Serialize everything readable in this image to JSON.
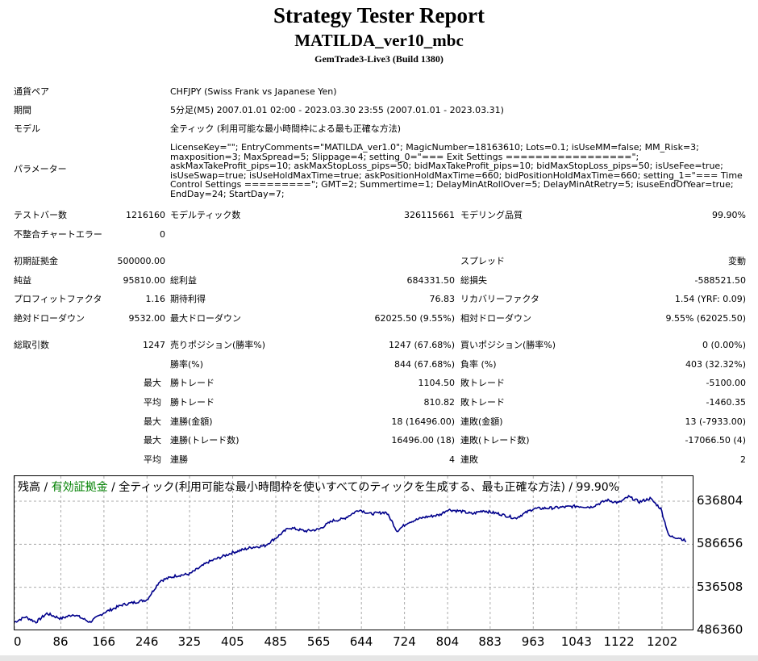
{
  "header": {
    "title": "Strategy Tester Report",
    "ea_name": "MATILDA_ver10_mbc",
    "server": "GemTrade3-Live3 (Build 1380)"
  },
  "info": {
    "symbol_label": "通貨ペア",
    "symbol": "CHFJPY (Swiss Frank vs Japanese Yen)",
    "period_label": "期間",
    "period": "5分足(M5) 2007.01.01 02:00 - 2023.03.30 23:55 (2007.01.01 - 2023.03.31)",
    "model_label": "モデル",
    "model": "全ティック (利用可能な最小時間枠による最も正確な方法)",
    "params_label": "パラメーター",
    "params": "LicenseKey=\"\"; EntryComments=\"MATILDA_ver1.0\"; MagicNumber=18163610; Lots=0.1; isUseMM=false; MM_Risk=3; maxposition=3; MaxSpread=5; Slippage=4; setting_0=\"=== Exit Settings =================\"; askMaxTakeProfit_pips=10; askMaxStopLoss_pips=50; bidMaxTakeProfit_pips=10; bidMaxStopLoss_pips=50; isUseFee=true; isUseSwap=true; isUseHoldMaxTime=true; askPositionHoldMaxTime=660; bidPositionHoldMaxTime=660; setting_1=\"=== Time Control Settings =========\"; GMT=2; Summertime=1; DelayMinAtRollOver=5; DelayMinAtRetry=5; isuseEndOfYear=true; EndDay=24; StartDay=7;"
  },
  "stats": {
    "bars_label": "テストバー数",
    "bars": "1216160",
    "ticks_label": "モデルティック数",
    "ticks": "326115661",
    "quality_label": "モデリング品質",
    "quality": "99.90%",
    "mismatch_label": "不整合チャートエラー",
    "mismatch": "0",
    "deposit_label": "初期証拠金",
    "deposit": "500000.00",
    "spread_label": "スプレッド",
    "spread": "変動",
    "net_label": "純益",
    "net": "95810.00",
    "gross_profit_label": "総利益",
    "gross_profit": "684331.50",
    "gross_loss_label": "総損失",
    "gross_loss": "-588521.50",
    "pf_label": "プロフィットファクタ",
    "pf": "1.16",
    "expected_label": "期待利得",
    "expected": "76.83",
    "recovery_label": "リカバリーファクタ",
    "recovery": "1.54 (YRF: 0.09)",
    "abs_dd_label": "絶対ドローダウン",
    "abs_dd": "9532.00",
    "max_dd_label": "最大ドローダウン",
    "max_dd": "62025.50 (9.55%)",
    "rel_dd_label": "相対ドローダウン",
    "rel_dd": "9.55% (62025.50)",
    "total_trades_label": "総取引数",
    "total_trades": "1247",
    "short_label": "売りポジション(勝率%)",
    "short": "1247 (67.68%)",
    "long_label": "買いポジション(勝率%)",
    "long": "0 (0.00%)",
    "win_rate_label": "勝率(%)",
    "win_rate": "844 (67.68%)",
    "loss_rate_label": "負率 (%)",
    "loss_rate": "403 (32.32%)",
    "max_label": "最大",
    "avg_label": "平均",
    "largest_win_label": "勝トレード",
    "largest_win": "1104.50",
    "largest_loss_label": "敗トレード",
    "largest_loss": "-5100.00",
    "avg_win_label": "勝トレード",
    "avg_win": "810.82",
    "avg_loss_label": "敗トレード",
    "avg_loss": "-1460.35",
    "cons_wins_amt_label": "連勝(金額)",
    "cons_wins_amt": "18 (16496.00)",
    "cons_loss_amt_label": "連敗(金額)",
    "cons_loss_amt": "13 (-7933.00)",
    "cons_wins_cnt_label": "連勝(トレード数)",
    "cons_wins_cnt": "16496.00 (18)",
    "cons_loss_cnt_label": "連敗(トレード数)",
    "cons_loss_cnt": "-17066.50 (4)",
    "avg_cons_win_label": "連勝",
    "avg_cons_win": "4",
    "avg_cons_loss_label": "連敗",
    "avg_cons_loss": "2"
  },
  "chart_data": {
    "type": "line",
    "legend": {
      "balance": "残高",
      "sep1": " / ",
      "equity": "有効証拠金",
      "rest": " / 全ティック(利用可能な最小時間枠を使いすべてのティックを生成する、最も正確な方法) / 99.90%"
    },
    "colors": {
      "line": "#00008b",
      "equity_text": "#008000",
      "grid": "#aaaaaa"
    },
    "y_ticks": [
      "636804",
      "586656",
      "536508",
      "486360"
    ],
    "x_ticks": [
      "0",
      "86",
      "166",
      "246",
      "325",
      "405",
      "485",
      "565",
      "644",
      "724",
      "804",
      "883",
      "963",
      "1043",
      "1122",
      "1202"
    ],
    "xlim": [
      0,
      1247
    ],
    "ylim": [
      486360,
      636804
    ],
    "series": [
      {
        "x": [
          0,
          20,
          40,
          60,
          86,
          110,
          140,
          166,
          200,
          246,
          270,
          300,
          325,
          360,
          405,
          440,
          465,
          485,
          510,
          540,
          565,
          590,
          610,
          640,
          660,
          690,
          700,
          710,
          730,
          760,
          790,
          804,
          830,
          850,
          870,
          883,
          900,
          930,
          963,
          1000,
          1043,
          1070,
          1100,
          1122,
          1140,
          1160,
          1180,
          1200,
          1215,
          1235,
          1247
        ],
        "y": [
          496000,
          502000,
          496000,
          506000,
          500000,
          505000,
          496000,
          507000,
          516000,
          522000,
          544000,
          550000,
          552000,
          566000,
          577000,
          583000,
          585000,
          594000,
          606000,
          602000,
          604000,
          614000,
          616000,
          627000,
          622000,
          624000,
          614000,
          602000,
          612000,
          618000,
          621000,
          627000,
          625000,
          622000,
          626000,
          624000,
          622000,
          617000,
          628000,
          629000,
          631000,
          630000,
          638000,
          635000,
          642000,
          636000,
          640000,
          628000,
          596000,
          594000,
          590000
        ]
      }
    ]
  }
}
